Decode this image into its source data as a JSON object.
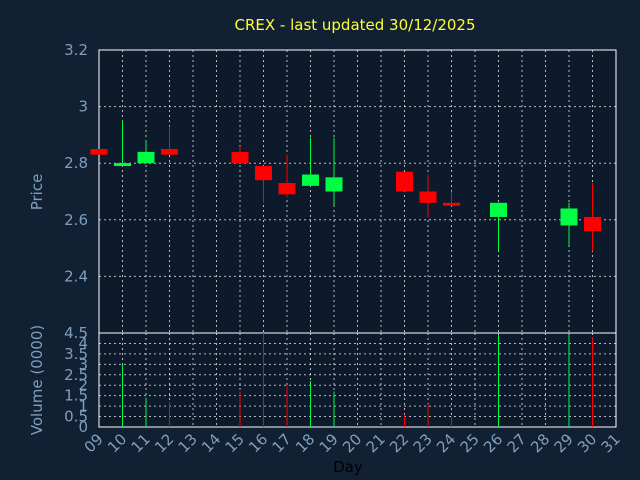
{
  "chart_data": [
    {
      "type": "candlestick",
      "title": "CREX - last updated 30/12/2025",
      "ylabel": "Price",
      "ylim": [
        2.2,
        3.2
      ],
      "yticks": [
        "3.2",
        "3",
        "2.8",
        "2.6",
        "2.4"
      ],
      "ytick_values": [
        3.2,
        3.0,
        2.8,
        2.6,
        2.4
      ],
      "grid": true,
      "up_color": "#00ff44",
      "down_color": "#ff0000",
      "candles": [
        {
          "day": 9,
          "open": 2.85,
          "close": 2.83,
          "high": 2.85,
          "low": 2.83
        },
        {
          "day": 10,
          "open": 2.79,
          "close": 2.8,
          "high": 2.95,
          "low": 2.79
        },
        {
          "day": 11,
          "open": 2.8,
          "close": 2.84,
          "high": 2.88,
          "low": 2.8
        },
        {
          "day": 12,
          "open": 2.85,
          "close": 2.83,
          "high": 2.93,
          "low": 2.83
        },
        {
          "day": 15,
          "open": 2.84,
          "close": 2.8,
          "high": 2.86,
          "low": 2.8
        },
        {
          "day": 16,
          "open": 2.79,
          "close": 2.74,
          "high": 2.79,
          "low": 2.66
        },
        {
          "day": 17,
          "open": 2.73,
          "close": 2.69,
          "high": 2.83,
          "low": 2.68
        },
        {
          "day": 18,
          "open": 2.72,
          "close": 2.76,
          "high": 2.89,
          "low": 2.72
        },
        {
          "day": 19,
          "open": 2.7,
          "close": 2.75,
          "high": 2.89,
          "low": 2.65
        },
        {
          "day": 22,
          "open": 2.77,
          "close": 2.7,
          "high": 2.77,
          "low": 2.7
        },
        {
          "day": 23,
          "open": 2.7,
          "close": 2.66,
          "high": 2.76,
          "low": 2.61
        },
        {
          "day": 24,
          "open": 2.66,
          "close": 2.65,
          "high": 2.7,
          "low": 2.65
        },
        {
          "day": 26,
          "open": 2.61,
          "close": 2.66,
          "high": 2.66,
          "low": 2.49
        },
        {
          "day": 29,
          "open": 2.58,
          "close": 2.64,
          "high": 2.66,
          "low": 2.51
        },
        {
          "day": 30,
          "open": 2.61,
          "close": 2.56,
          "high": 2.73,
          "low": 2.49
        }
      ]
    },
    {
      "type": "bar",
      "xlabel": "Day",
      "ylabel": "Volume (0000)",
      "ylim": [
        0,
        4.5
      ],
      "yticks": [
        "4.5",
        "4",
        "3.5",
        "3",
        "2.5",
        "2",
        "1.5",
        "1",
        "0.5",
        "0"
      ],
      "ytick_values": [
        4.5,
        4.0,
        3.5,
        3.0,
        2.5,
        2.0,
        1.5,
        1.0,
        0.5,
        0.0
      ],
      "categories": [
        "09",
        "10",
        "11",
        "12",
        "13",
        "14",
        "15",
        "16",
        "17",
        "18",
        "19",
        "20",
        "21",
        "22",
        "23",
        "24",
        "25",
        "26",
        "27",
        "28",
        "29",
        "30",
        "31"
      ],
      "grid": true,
      "bars": [
        {
          "day": 10,
          "volume": 3.0,
          "color": "#00ff44"
        },
        {
          "day": 11,
          "volume": 1.4,
          "color": "#00ff44"
        },
        {
          "day": 12,
          "volume": 1.2,
          "color": "#ff0000"
        },
        {
          "day": 15,
          "volume": 1.7,
          "color": "#ff0000"
        },
        {
          "day": 16,
          "volume": 4.5,
          "color": "#ff0000"
        },
        {
          "day": 17,
          "volume": 2.0,
          "color": "#ff0000"
        },
        {
          "day": 18,
          "volume": 2.2,
          "color": "#00ff44"
        },
        {
          "day": 19,
          "volume": 1.7,
          "color": "#00ff44"
        },
        {
          "day": 22,
          "volume": 0.6,
          "color": "#ff0000"
        },
        {
          "day": 23,
          "volume": 1.1,
          "color": "#ff0000"
        },
        {
          "day": 24,
          "volume": 0.5,
          "color": "#ff0000"
        },
        {
          "day": 26,
          "volume": 4.4,
          "color": "#00ff44"
        },
        {
          "day": 29,
          "volume": 4.4,
          "color": "#00ff44"
        },
        {
          "day": 30,
          "volume": 4.3,
          "color": "#ff0000"
        }
      ]
    }
  ]
}
